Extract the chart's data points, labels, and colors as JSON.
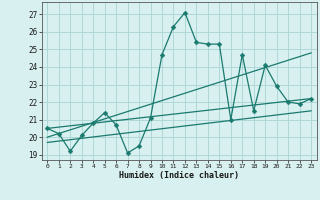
{
  "xlabel": "Humidex (Indice chaleur)",
  "bg_color": "#d8f0f0",
  "line_color": "#1a7a6e",
  "grid_color": "#b0d8d8",
  "xlim": [
    -0.5,
    23.5
  ],
  "ylim": [
    18.7,
    27.7
  ],
  "yticks": [
    19,
    20,
    21,
    22,
    23,
    24,
    25,
    26,
    27
  ],
  "xticks": [
    0,
    1,
    2,
    3,
    4,
    5,
    6,
    7,
    8,
    9,
    10,
    11,
    12,
    13,
    14,
    15,
    16,
    17,
    18,
    19,
    20,
    21,
    22,
    23
  ],
  "line1_x": [
    0,
    1,
    2,
    3,
    4,
    5,
    6,
    7,
    8,
    9,
    10,
    11,
    12,
    13,
    14,
    15,
    16,
    17,
    18,
    19,
    20,
    21,
    22,
    23
  ],
  "line1_y": [
    20.5,
    20.2,
    19.2,
    20.1,
    20.8,
    21.4,
    20.7,
    19.1,
    19.5,
    21.1,
    24.7,
    26.3,
    27.1,
    25.4,
    25.3,
    25.3,
    21.0,
    24.7,
    21.5,
    24.1,
    22.9,
    22.0,
    21.9,
    22.2
  ],
  "line2_x": [
    0,
    23
  ],
  "line2_y": [
    20.5,
    22.2
  ],
  "line3_x": [
    0,
    23
  ],
  "line3_y": [
    20.0,
    24.8
  ],
  "line4_x": [
    0,
    23
  ],
  "line4_y": [
    19.7,
    21.5
  ],
  "markersize": 2.5,
  "linewidth": 0.9
}
